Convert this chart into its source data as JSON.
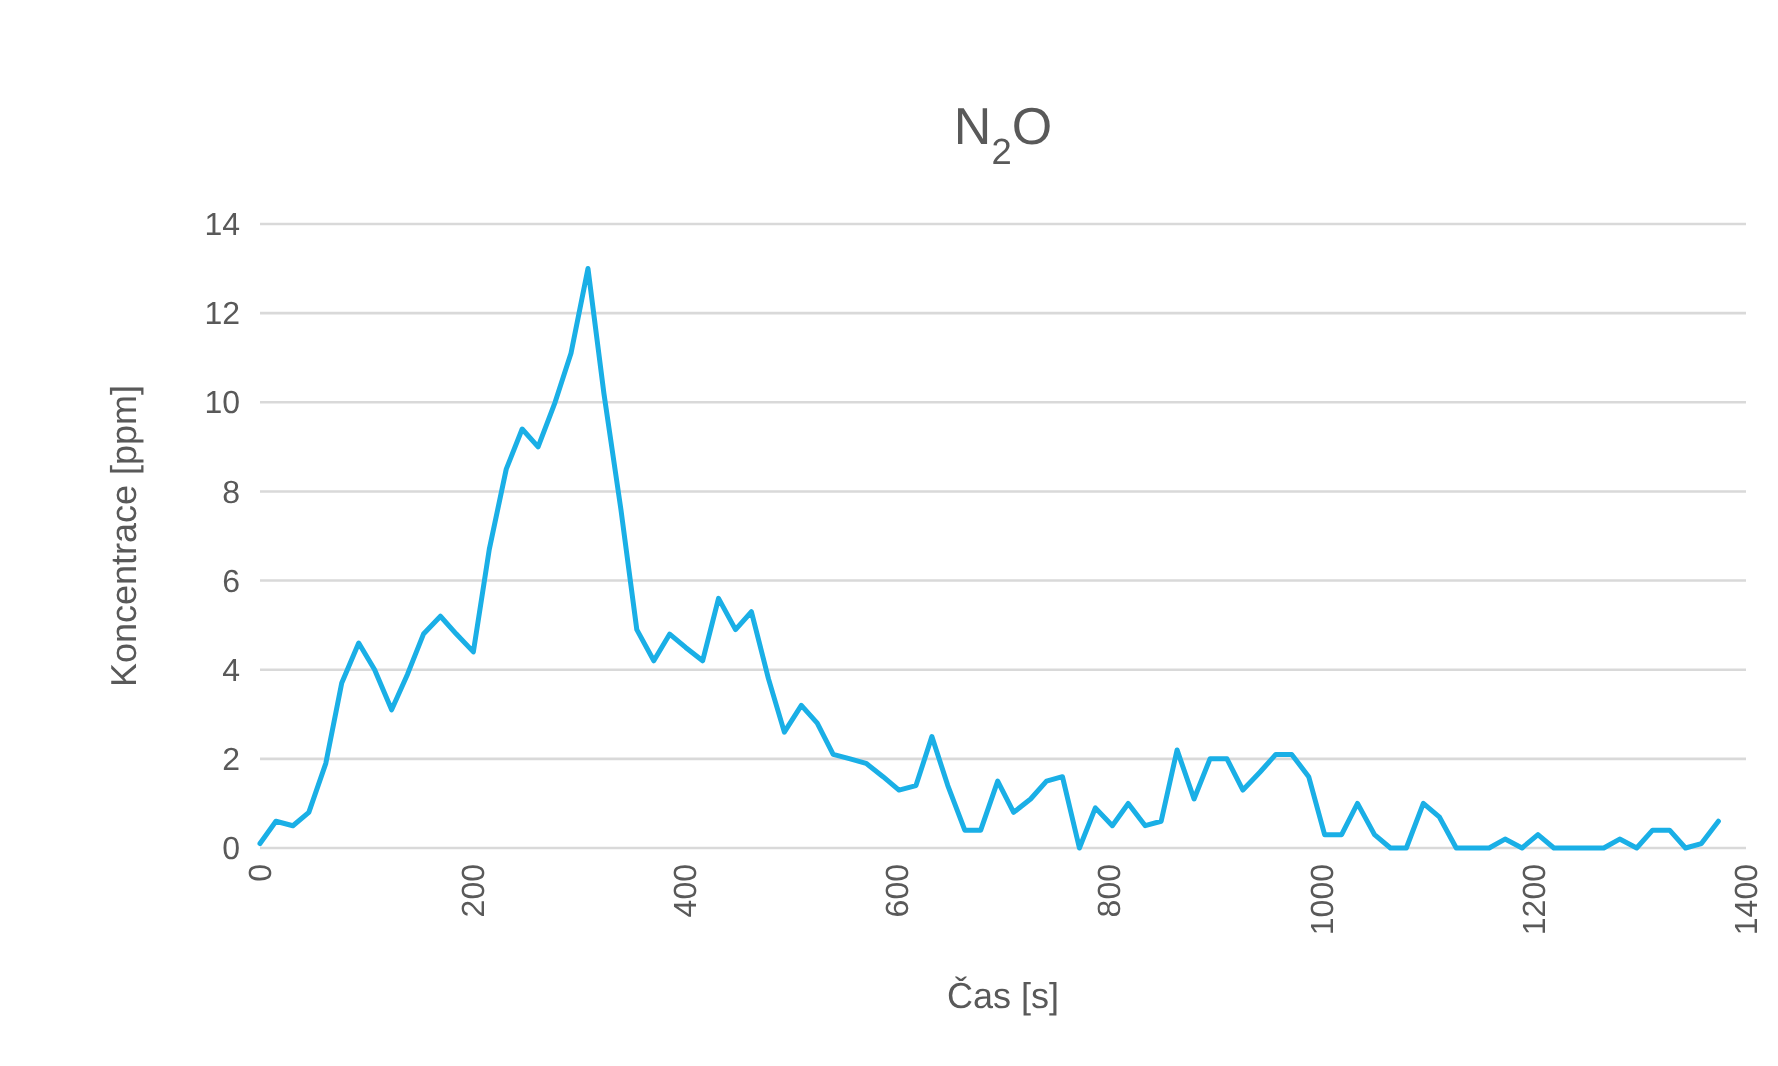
{
  "chart_data": {
    "type": "line",
    "title": "N$_{2}$O",
    "xlabel": "Čas [s]",
    "ylabel": "Koncentrace [ppm]",
    "x": [
      0,
      15,
      31,
      46,
      62,
      77,
      93,
      108,
      124,
      139,
      154,
      170,
      185,
      201,
      216,
      232,
      247,
      262,
      278,
      293,
      309,
      324,
      340,
      355,
      371,
      386,
      401,
      417,
      432,
      448,
      463,
      479,
      494,
      510,
      525,
      540,
      556,
      571,
      587,
      602,
      618,
      633,
      648,
      664,
      679,
      695,
      710,
      726,
      741,
      756,
      772,
      787,
      803,
      818,
      834,
      849,
      864,
      880,
      895,
      911,
      926,
      942,
      957,
      972,
      988,
      1003,
      1019,
      1034,
      1050,
      1065,
      1080,
      1096,
      1111,
      1127,
      1142,
      1158,
      1173,
      1189,
      1204,
      1219,
      1235,
      1250,
      1266,
      1281,
      1297,
      1312,
      1328,
      1343,
      1358,
      1374
    ],
    "series": [
      {
        "color": "#1aafe6",
        "values": [
          0.1,
          0.6,
          0.5,
          0.8,
          1.9,
          3.7,
          4.6,
          4.0,
          3.1,
          3.9,
          4.8,
          5.2,
          4.8,
          4.4,
          6.7,
          8.5,
          9.4,
          9.0,
          10.0,
          11.1,
          13.0,
          10.2,
          7.6,
          4.9,
          4.2,
          4.8,
          4.5,
          4.2,
          5.6,
          4.9,
          5.3,
          3.8,
          2.6,
          3.2,
          2.8,
          2.1,
          2.0,
          1.9,
          1.6,
          1.3,
          1.4,
          2.5,
          1.4,
          0.4,
          0.4,
          1.5,
          0.8,
          1.1,
          1.5,
          1.6,
          0.0,
          0.9,
          0.5,
          1.0,
          0.5,
          0.6,
          2.2,
          1.1,
          2.0,
          2.0,
          1.3,
          1.7,
          2.1,
          2.1,
          1.6,
          0.3,
          0.3,
          1.0,
          0.3,
          0.0,
          0.0,
          1.0,
          0.7,
          0,
          0,
          0,
          0.2,
          0,
          0.3,
          0,
          0,
          0,
          0,
          0.2,
          0,
          0.4,
          0.4,
          0,
          0.1,
          0.6
        ]
      }
    ],
    "xlim": [
      0,
      1400
    ],
    "xticks": [
      0,
      200,
      400,
      600,
      800,
      1000,
      1200,
      1400
    ],
    "ylim": [
      0,
      14
    ],
    "yticks": [
      0,
      2,
      4,
      6,
      8,
      10,
      12,
      14
    ],
    "grid": "y",
    "marker": "none",
    "line_style": "solid"
  }
}
